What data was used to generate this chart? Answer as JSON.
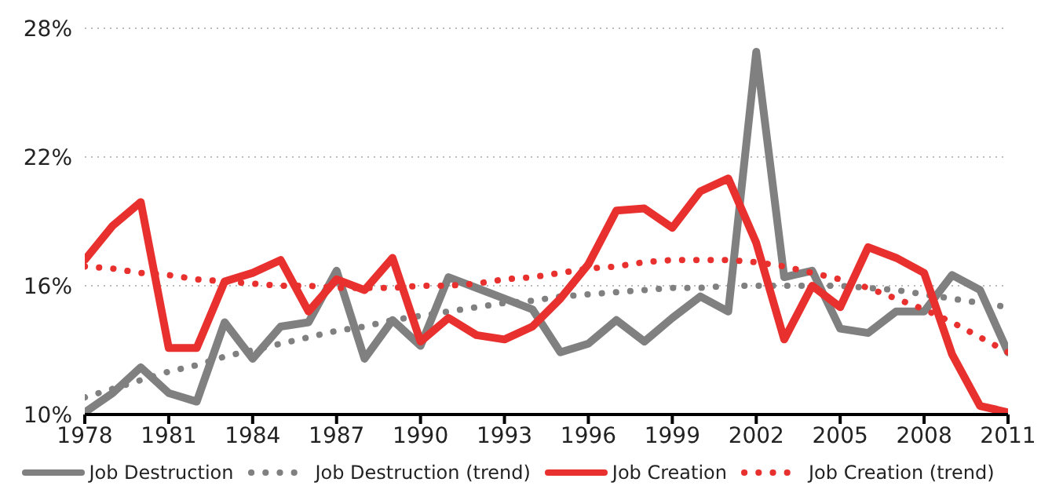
{
  "chart_data": {
    "type": "line",
    "x": [
      1978,
      1979,
      1980,
      1981,
      1982,
      1983,
      1984,
      1985,
      1986,
      1987,
      1988,
      1989,
      1990,
      1991,
      1992,
      1993,
      1994,
      1995,
      1996,
      1997,
      1998,
      1999,
      2000,
      2001,
      2002,
      2003,
      2004,
      2005,
      2006,
      2007,
      2008,
      2009,
      2010,
      2011
    ],
    "series": [
      {
        "name": "Job Destruction",
        "color": "#808080",
        "line_style": "solid",
        "values": [
          10.1,
          11.0,
          12.2,
          11.0,
          10.6,
          14.3,
          12.6,
          14.1,
          14.3,
          16.7,
          12.6,
          14.4,
          13.2,
          16.4,
          15.9,
          15.4,
          14.9,
          12.9,
          13.3,
          14.4,
          13.4,
          14.5,
          15.5,
          14.8,
          26.9,
          16.4,
          16.7,
          14.0,
          13.8,
          14.8,
          14.8,
          16.5,
          15.8,
          12.9
        ]
      },
      {
        "name": "Job Destruction (trend)",
        "color": "#808080",
        "line_style": "dotted",
        "values": [
          10.8,
          11.2,
          11.6,
          12.0,
          12.3,
          12.7,
          13.0,
          13.3,
          13.6,
          13.9,
          14.1,
          14.4,
          14.6,
          14.8,
          15.0,
          15.2,
          15.3,
          15.5,
          15.6,
          15.7,
          15.8,
          15.9,
          15.9,
          16.0,
          16.0,
          16.0,
          16.0,
          16.0,
          15.9,
          15.8,
          15.6,
          15.4,
          15.2,
          15.0
        ]
      },
      {
        "name": "Job Creation",
        "color": "#e8312f",
        "line_style": "solid",
        "values": [
          17.2,
          18.8,
          19.9,
          13.1,
          13.1,
          16.2,
          16.6,
          17.2,
          14.8,
          16.3,
          15.8,
          17.3,
          13.4,
          14.5,
          13.7,
          13.5,
          14.1,
          15.4,
          17.0,
          19.5,
          19.6,
          18.7,
          20.4,
          21.0,
          18.0,
          13.5,
          16.0,
          15.0,
          17.8,
          17.3,
          16.6,
          12.8,
          10.4,
          10.1
        ]
      },
      {
        "name": "Job Creation (trend)",
        "color": "#e8312f",
        "line_style": "dotted",
        "values": [
          16.9,
          16.8,
          16.6,
          16.5,
          16.3,
          16.2,
          16.1,
          16.0,
          16.0,
          15.9,
          15.9,
          15.9,
          16.0,
          16.0,
          16.1,
          16.3,
          16.4,
          16.6,
          16.8,
          16.9,
          17.1,
          17.2,
          17.2,
          17.2,
          17.1,
          16.9,
          16.6,
          16.3,
          15.9,
          15.4,
          14.9,
          14.3,
          13.6,
          12.9
        ]
      }
    ],
    "xlim": [
      1978,
      2011
    ],
    "xticks": [
      1978,
      1981,
      1984,
      1987,
      1990,
      1993,
      1996,
      1999,
      2002,
      2005,
      2008,
      2011
    ],
    "ylim": [
      10,
      28
    ],
    "yticks": [
      {
        "value": 10,
        "label": "10%"
      },
      {
        "value": 16,
        "label": "16%"
      },
      {
        "value": 22,
        "label": "22%"
      },
      {
        "value": 28,
        "label": "28%"
      }
    ],
    "grid": "y",
    "legend": "bottom"
  }
}
